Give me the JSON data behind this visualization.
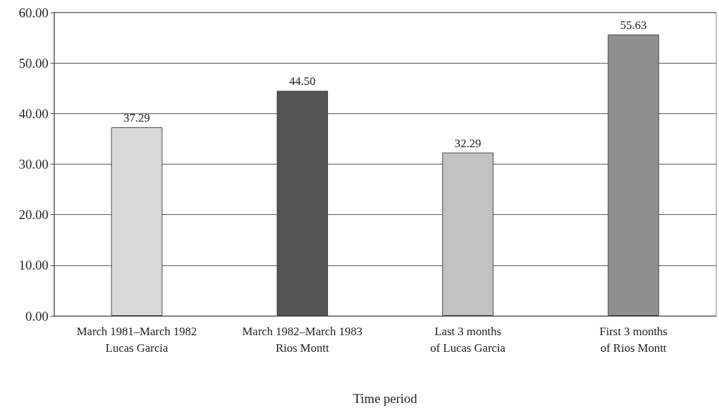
{
  "chart_data": {
    "type": "bar",
    "xlabel": "Time period",
    "categories": [
      "March 1981–March 1982\nLucas Garcia",
      "March 1982–March 1983\nRios Montt",
      "Last 3 months\nof Lucas Garcia",
      "First 3 months\nof Rios Montt"
    ],
    "values": [
      37.29,
      44.5,
      32.29,
      55.63
    ],
    "value_labels": [
      "37.29",
      "44.50",
      "32.29",
      "55.63"
    ],
    "colors": [
      "#d9d9d9",
      "#555555",
      "#c2c2c2",
      "#8f8f8f"
    ],
    "ylim": [
      0,
      60
    ],
    "yticks": [
      {
        "value": 0,
        "label": "0.00"
      },
      {
        "value": 10,
        "label": "10.00"
      },
      {
        "value": 20,
        "label": "20.00"
      },
      {
        "value": 30,
        "label": "30.00"
      },
      {
        "value": 40,
        "label": "40.00"
      },
      {
        "value": 50,
        "label": "50.00"
      },
      {
        "value": 60,
        "label": "60.00"
      }
    ],
    "grid": "y"
  }
}
